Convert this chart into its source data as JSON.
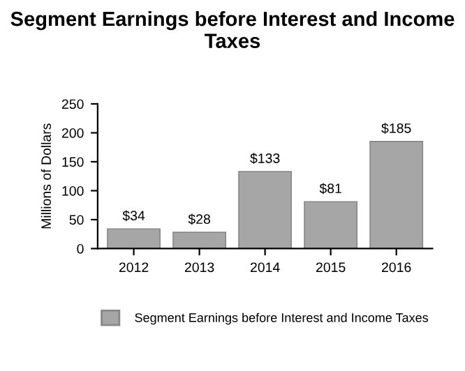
{
  "chart_data": {
    "type": "bar",
    "title": "Segment Earnings before Interest and Income Taxes",
    "ylabel": "Millions of Dollars",
    "categories": [
      "2012",
      "2013",
      "2014",
      "2015",
      "2016"
    ],
    "series": [
      {
        "name": "Segment Earnings before Interest and Income Taxes",
        "color": "#a6a6a6",
        "values": [
          34,
          28,
          133,
          81,
          185
        ],
        "value_labels": [
          "$34",
          "$28",
          "$133",
          "$81",
          "$185"
        ]
      }
    ],
    "ylim": [
      0,
      250
    ],
    "yticks": [
      0,
      50,
      100,
      150,
      200,
      250
    ],
    "grid": false,
    "legend": "bottom"
  }
}
